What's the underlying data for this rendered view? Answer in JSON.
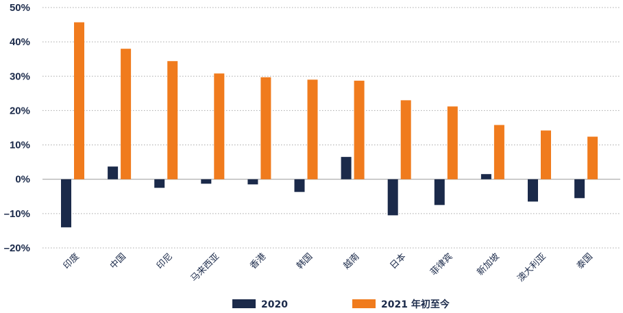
{
  "chart_data": {
    "type": "bar",
    "title": "",
    "xlabel": "",
    "ylabel": "",
    "categories": [
      "印度",
      "中国",
      "印尼",
      "马来西亚",
      "香港",
      "韩国",
      "越南",
      "日本",
      "菲律宾",
      "新加坡",
      "澳大利亚",
      "泰国"
    ],
    "series": [
      {
        "name": "2020",
        "color": "#1b2a4a",
        "values": [
          -14,
          3.7,
          -2.5,
          -1.3,
          -1.5,
          -3.7,
          6.5,
          -10.5,
          -7.5,
          1.5,
          -6.5,
          -5.5
        ]
      },
      {
        "name": "2021 年初至今",
        "color": "#f07b1d",
        "values": [
          45.7,
          38,
          34.4,
          30.8,
          29.7,
          29,
          28.7,
          23,
          21.2,
          15.8,
          14.2,
          12.4
        ]
      }
    ],
    "ylim": [
      -20,
      50
    ],
    "yticks": [
      -20,
      -10,
      0,
      10,
      20,
      30,
      40,
      50
    ],
    "ytick_labels": [
      "–20%",
      "–10%",
      "0%",
      "10%",
      "20%",
      "30%",
      "40%",
      "50%"
    ],
    "grid": true,
    "legend_position": "bottom"
  }
}
